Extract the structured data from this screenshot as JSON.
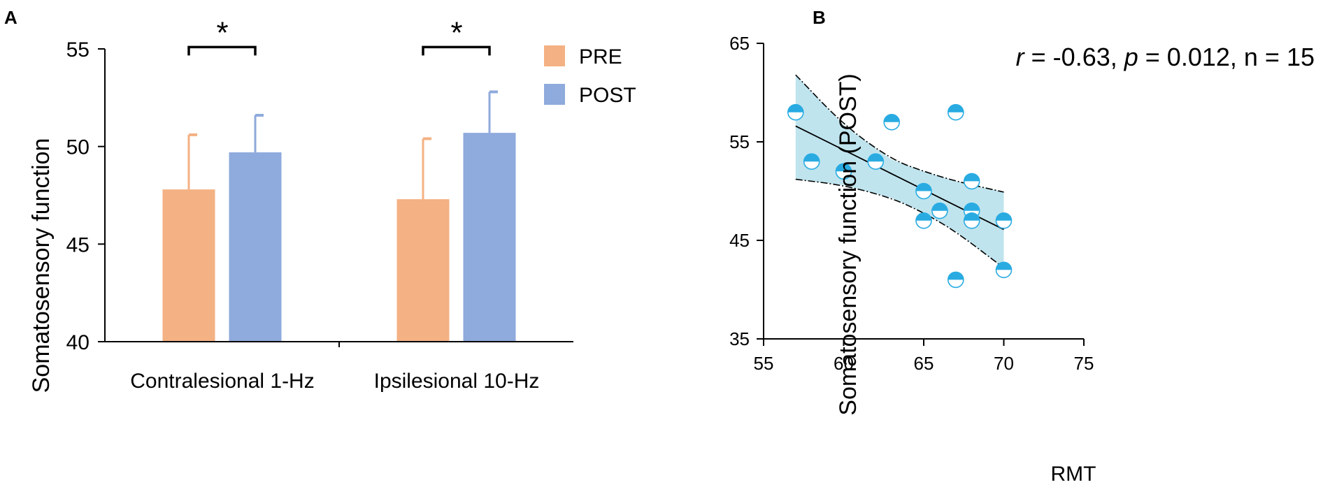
{
  "panels": {
    "a_label": "A",
    "b_label": "B"
  },
  "chart_data": [
    {
      "type": "bar",
      "panel": "A",
      "title": "",
      "ylabel": "Somatosensory function",
      "xlabel": "",
      "ylim": [
        40,
        55
      ],
      "yticks": [
        40,
        45,
        50,
        55
      ],
      "categories": [
        "Contralesional 1-Hz",
        "Ipsilesional 10-Hz"
      ],
      "series": [
        {
          "name": "PRE",
          "color": "#F4B183",
          "values": [
            47.8,
            47.3
          ],
          "errors": [
            2.8,
            3.1
          ]
        },
        {
          "name": "POST",
          "color": "#8FAADC",
          "values": [
            49.7,
            50.7
          ],
          "errors": [
            1.9,
            2.1
          ]
        }
      ],
      "significance": [
        {
          "category": "Contralesional 1-Hz",
          "label": "*",
          "y": 55.2
        },
        {
          "category": "Ipsilesional 10-Hz",
          "label": "*",
          "y": 55.2
        }
      ],
      "legend": "top-right"
    },
    {
      "type": "scatter",
      "panel": "B",
      "title": "",
      "annotation": {
        "r_sym": "r",
        "r_val": " = -0.63, ",
        "p_sym": "p",
        "p_val": " = 0.012, n = 15"
      },
      "xlabel": "RMT",
      "ylabel": "Somatosensory function (POST)",
      "xlim": [
        55,
        75
      ],
      "ylim": [
        35,
        65
      ],
      "xticks": [
        55,
        60,
        65,
        70,
        75
      ],
      "yticks": [
        35,
        45,
        55,
        65
      ],
      "point_color": "#29ABE2",
      "band_color": "#BFE4EE",
      "points": [
        {
          "x": 57,
          "y": 58
        },
        {
          "x": 58,
          "y": 53
        },
        {
          "x": 60,
          "y": 52
        },
        {
          "x": 62,
          "y": 53
        },
        {
          "x": 63,
          "y": 57
        },
        {
          "x": 65,
          "y": 50
        },
        {
          "x": 65,
          "y": 47
        },
        {
          "x": 66,
          "y": 48
        },
        {
          "x": 67,
          "y": 58
        },
        {
          "x": 67,
          "y": 41
        },
        {
          "x": 68,
          "y": 51
        },
        {
          "x": 68,
          "y": 48
        },
        {
          "x": 68,
          "y": 47
        },
        {
          "x": 70,
          "y": 47
        },
        {
          "x": 70,
          "y": 42
        }
      ],
      "fit_line": {
        "x": [
          57,
          70
        ],
        "y": [
          56.6,
          46.1
        ]
      },
      "ci_upper": {
        "x": [
          57,
          60,
          63,
          65,
          67,
          70
        ],
        "y": [
          61.8,
          56.7,
          53.2,
          52.0,
          51.0,
          49.9
        ]
      },
      "ci_lower": {
        "x": [
          57,
          60,
          63,
          65,
          67,
          70
        ],
        "y": [
          51.2,
          50.6,
          49.3,
          47.8,
          45.9,
          42.2
        ]
      }
    }
  ]
}
